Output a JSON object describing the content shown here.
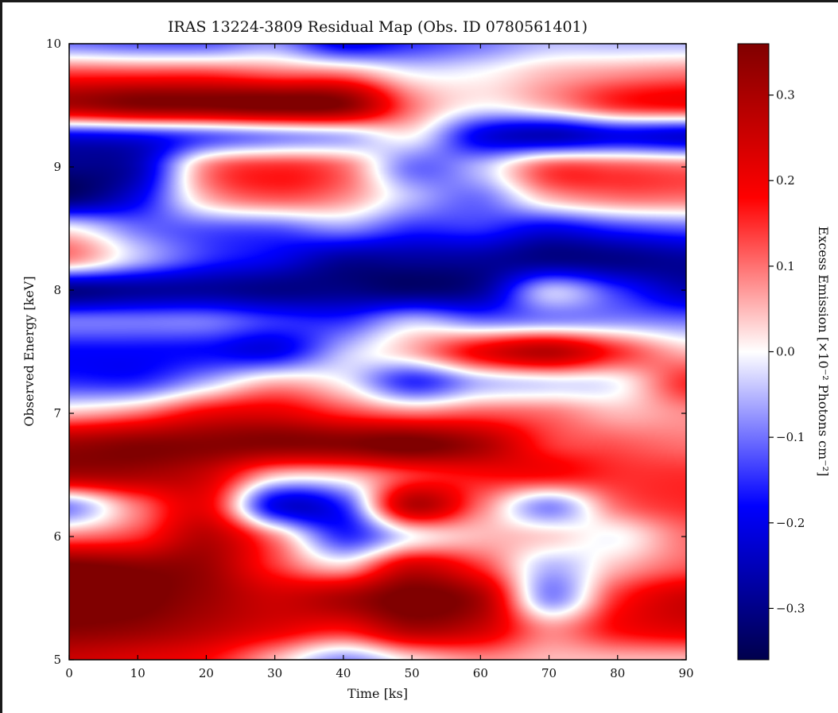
{
  "chart_data": {
    "type": "heatmap",
    "title": "IRAS 13224-3809 Residual Map (Obs. ID 0780561401)",
    "xlabel": "Time [ks]",
    "ylabel": "Observed Energy [keV]",
    "colorbar_label": "Excess Emission [×10⁻² Photons cm⁻²]",
    "xlim": [
      0,
      90
    ],
    "ylim": [
      5,
      10
    ],
    "xticks": [
      0,
      10,
      20,
      30,
      40,
      50,
      60,
      70,
      80,
      90
    ],
    "yticks": [
      5,
      6,
      7,
      8,
      9,
      10
    ],
    "clim": [
      -0.36,
      0.36
    ],
    "colorbar_ticks": [
      0.3,
      0.2,
      0.1,
      0.0,
      -0.1,
      -0.2,
      -0.3
    ],
    "colorbar_tick_labels": [
      "0.3",
      "0.2",
      "0.1",
      "0.0",
      "−0.1",
      "−0.2",
      "−0.3"
    ],
    "colormap": "seismic",
    "colormap_stops": [
      "#00004c",
      "#0000ff",
      "#ffffff",
      "#ff0000",
      "#800000"
    ],
    "x": [
      0,
      10,
      20,
      30,
      40,
      50,
      60,
      70,
      80,
      90
    ],
    "y": [
      5.0,
      5.25,
      5.5,
      5.75,
      6.0,
      6.25,
      6.5,
      6.75,
      7.0,
      7.25,
      7.5,
      7.75,
      8.0,
      8.25,
      8.5,
      8.75,
      9.0,
      9.25,
      9.5,
      9.75,
      10.0
    ],
    "z": [
      [
        0.25,
        0.22,
        0.18,
        0.05,
        -0.08,
        0.02,
        0.08,
        0.05,
        0.05,
        0.05
      ],
      [
        0.35,
        0.33,
        0.28,
        0.22,
        0.18,
        0.3,
        0.25,
        0.08,
        0.18,
        0.22
      ],
      [
        0.4,
        0.38,
        0.32,
        0.25,
        0.3,
        0.38,
        0.3,
        -0.08,
        0.15,
        0.25
      ],
      [
        0.38,
        0.35,
        0.32,
        0.15,
        0.05,
        0.25,
        0.15,
        -0.05,
        0.05,
        0.12
      ],
      [
        0.1,
        0.15,
        0.28,
        0.08,
        -0.15,
        0.0,
        0.05,
        0.03,
        0.0,
        0.1
      ],
      [
        -0.08,
        0.1,
        0.2,
        -0.2,
        -0.15,
        0.28,
        0.1,
        -0.08,
        0.1,
        0.15
      ],
      [
        0.3,
        0.3,
        0.25,
        0.05,
        0.05,
        0.15,
        0.18,
        0.18,
        0.15,
        0.15
      ],
      [
        0.32,
        0.35,
        0.35,
        0.35,
        0.35,
        0.38,
        0.3,
        0.15,
        0.12,
        0.1
      ],
      [
        0.05,
        0.1,
        0.2,
        0.22,
        0.15,
        0.1,
        0.12,
        0.1,
        0.05,
        0.08
      ],
      [
        -0.15,
        -0.15,
        -0.05,
        0.05,
        0.0,
        -0.15,
        -0.05,
        -0.02,
        0.0,
        0.15
      ],
      [
        -0.18,
        -0.18,
        -0.18,
        -0.2,
        -0.05,
        0.05,
        0.2,
        0.28,
        0.15,
        0.05
      ],
      [
        -0.1,
        -0.1,
        -0.1,
        -0.15,
        -0.15,
        -0.05,
        -0.1,
        -0.08,
        -0.08,
        -0.1
      ],
      [
        -0.3,
        -0.28,
        -0.28,
        -0.3,
        -0.3,
        -0.32,
        -0.28,
        -0.05,
        -0.15,
        -0.25
      ],
      [
        0.08,
        -0.05,
        -0.15,
        -0.2,
        -0.28,
        -0.28,
        -0.28,
        -0.3,
        -0.3,
        -0.28
      ],
      [
        0.0,
        -0.1,
        -0.12,
        -0.12,
        -0.08,
        -0.15,
        -0.15,
        -0.2,
        -0.15,
        -0.12
      ],
      [
        -0.32,
        -0.2,
        0.05,
        0.12,
        0.08,
        -0.05,
        -0.1,
        0.05,
        0.1,
        0.1
      ],
      [
        -0.3,
        -0.25,
        0.08,
        0.15,
        0.1,
        -0.1,
        -0.05,
        0.12,
        0.12,
        0.1
      ],
      [
        -0.2,
        -0.18,
        -0.12,
        -0.08,
        -0.05,
        0.0,
        -0.2,
        -0.25,
        -0.2,
        -0.22
      ],
      [
        0.3,
        0.35,
        0.36,
        0.38,
        0.35,
        0.1,
        0.0,
        0.05,
        0.15,
        0.18
      ],
      [
        0.15,
        0.15,
        0.15,
        0.12,
        0.1,
        0.0,
        0.0,
        0.05,
        0.08,
        0.1
      ],
      [
        -0.1,
        -0.12,
        -0.12,
        -0.08,
        -0.2,
        -0.15,
        -0.1,
        -0.05,
        -0.05,
        -0.05
      ]
    ]
  }
}
